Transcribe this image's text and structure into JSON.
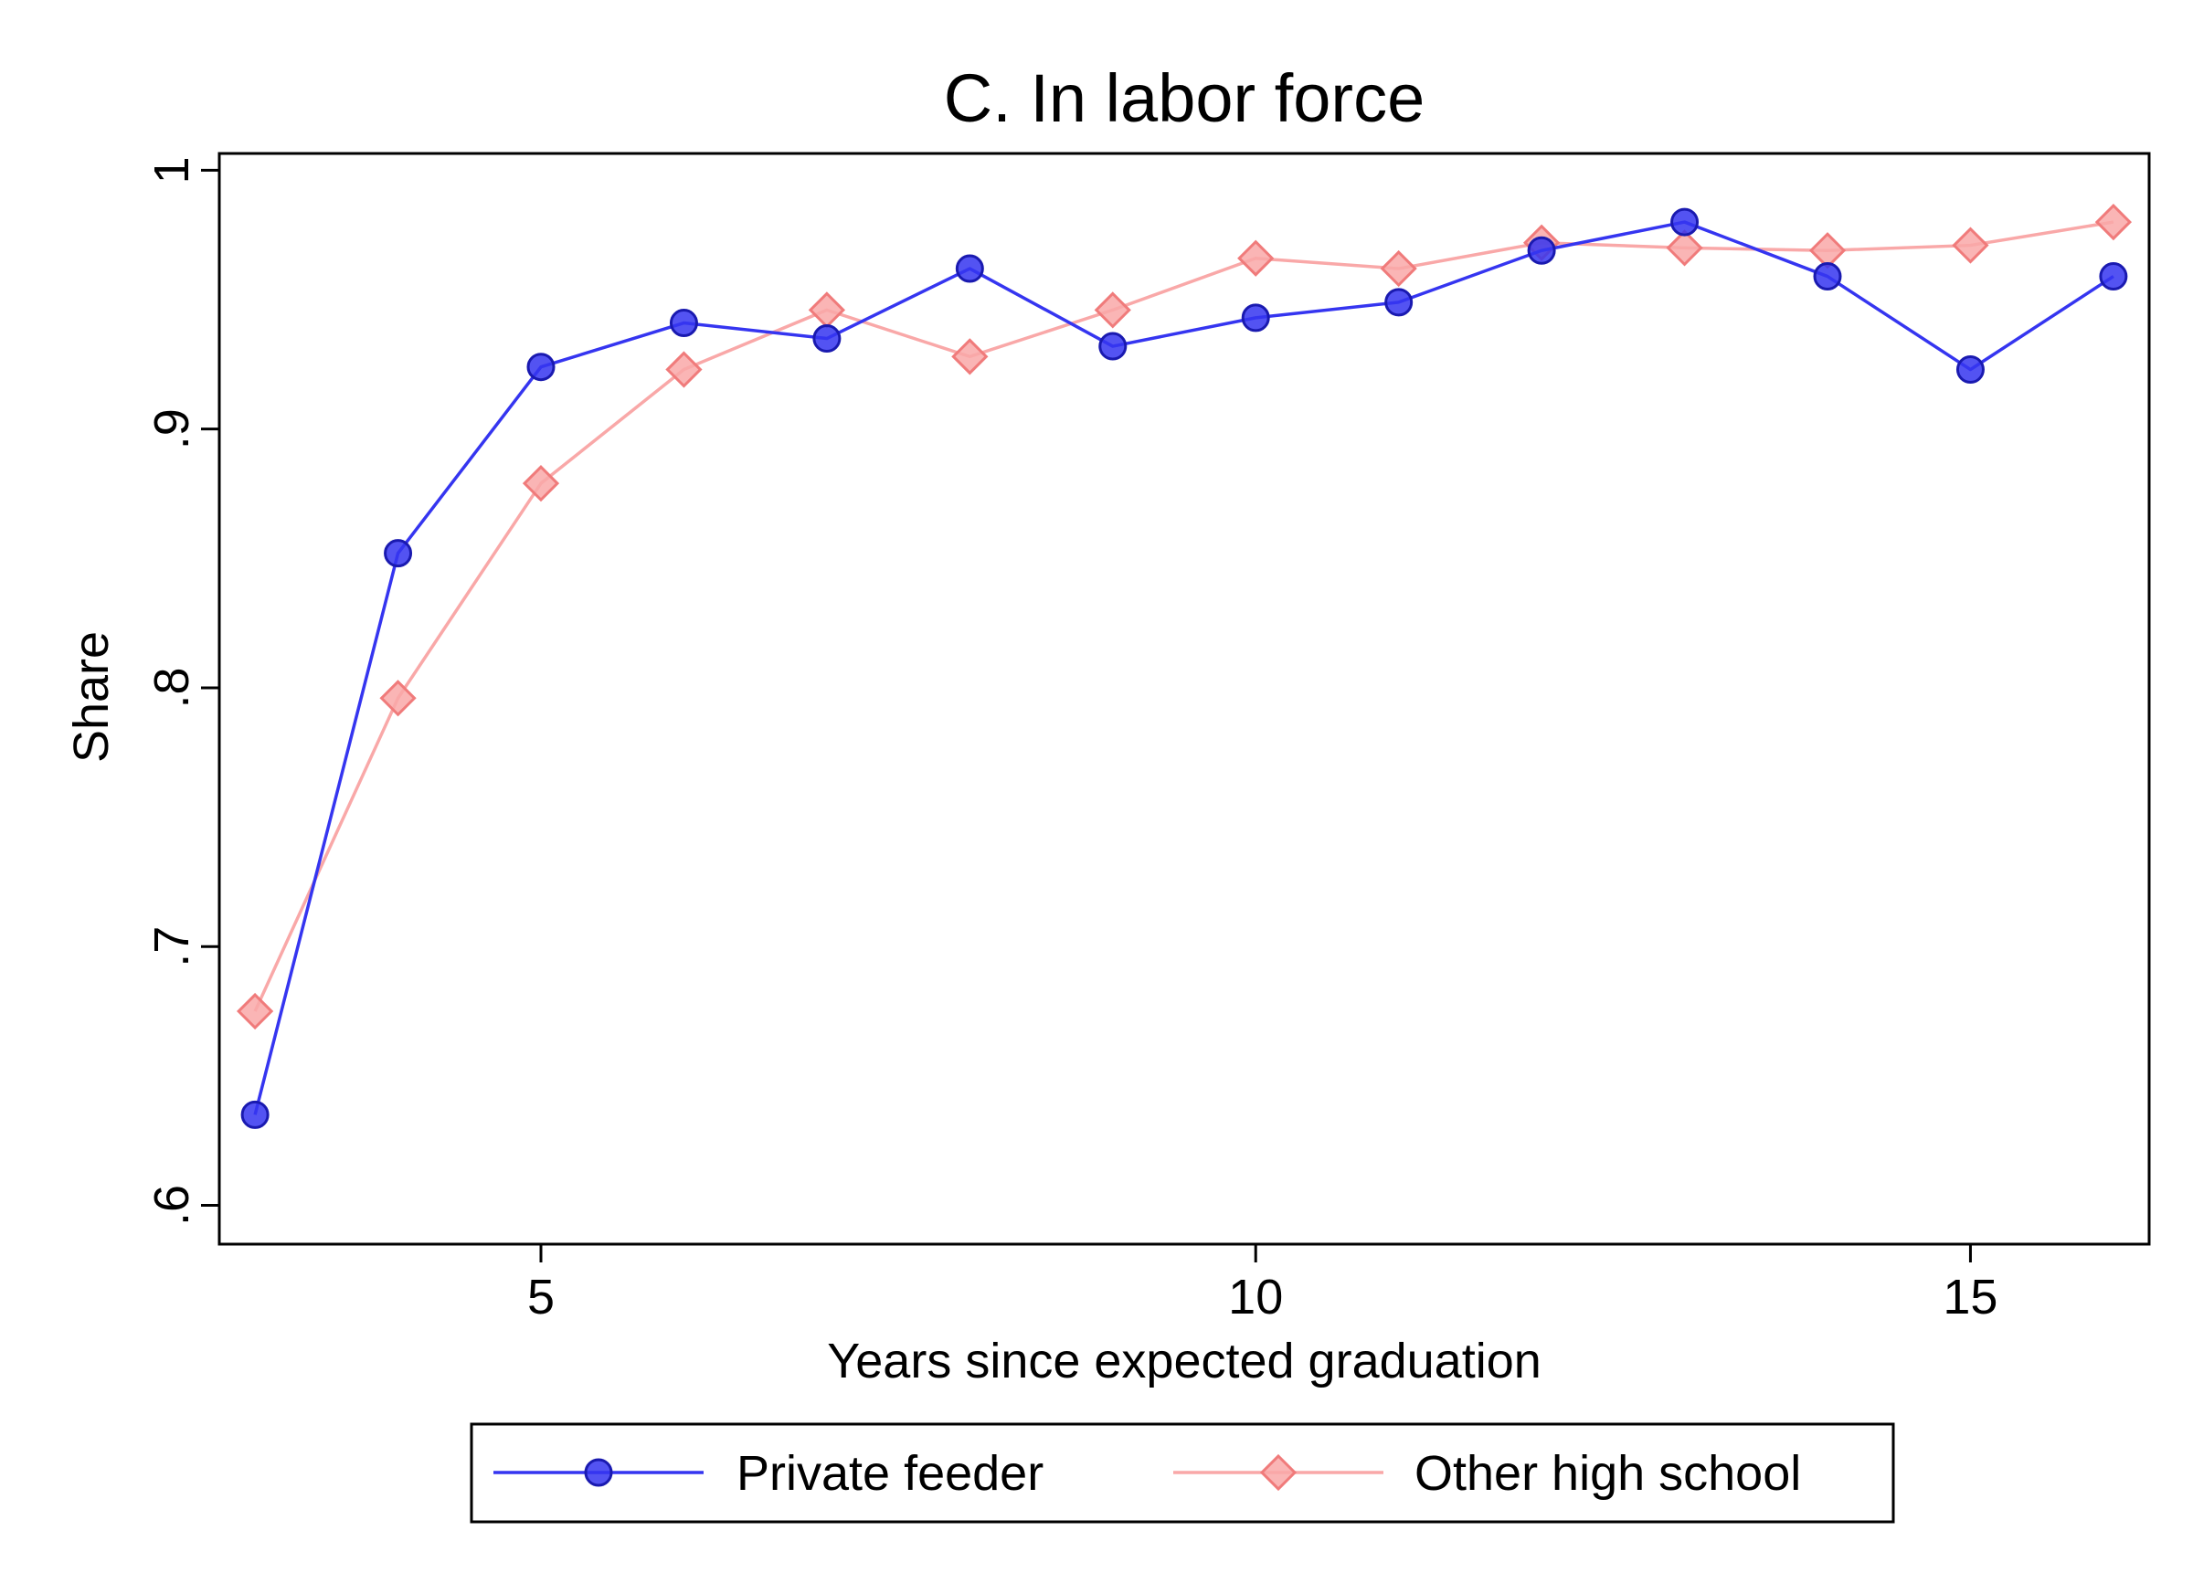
{
  "chart_data": {
    "type": "line",
    "title": "C. In labor force",
    "xlabel": "Years since expected graduation",
    "ylabel": "Share",
    "xlim": [
      2.75,
      16.25
    ],
    "ylim": [
      0.585,
      1.0065
    ],
    "xticks": [
      5,
      10,
      15
    ],
    "xtick_labels": [
      "5",
      "10",
      "15"
    ],
    "yticks": [
      0.6,
      0.7,
      0.8,
      0.9,
      1.0
    ],
    "ytick_labels": [
      ".6",
      ".7",
      ".8",
      ".9",
      "1"
    ],
    "grid": false,
    "legend_position": "bottom",
    "x": [
      3,
      4,
      5,
      6,
      7,
      8,
      9,
      10,
      11,
      12,
      13,
      14,
      15,
      16
    ],
    "series": [
      {
        "name": "Private feeder",
        "marker": "circle",
        "color": "#3535f0",
        "values": [
          0.635,
          0.852,
          0.924,
          0.941,
          0.935,
          0.962,
          0.932,
          0.943,
          0.949,
          0.969,
          0.98,
          0.959,
          0.923,
          0.959
        ]
      },
      {
        "name": "Other high school",
        "marker": "diamond",
        "color": "#f9a8a8",
        "values": [
          0.675,
          0.796,
          0.879,
          0.923,
          0.946,
          0.928,
          0.946,
          0.966,
          0.962,
          0.972,
          0.97,
          0.969,
          0.971,
          0.98
        ]
      }
    ]
  }
}
